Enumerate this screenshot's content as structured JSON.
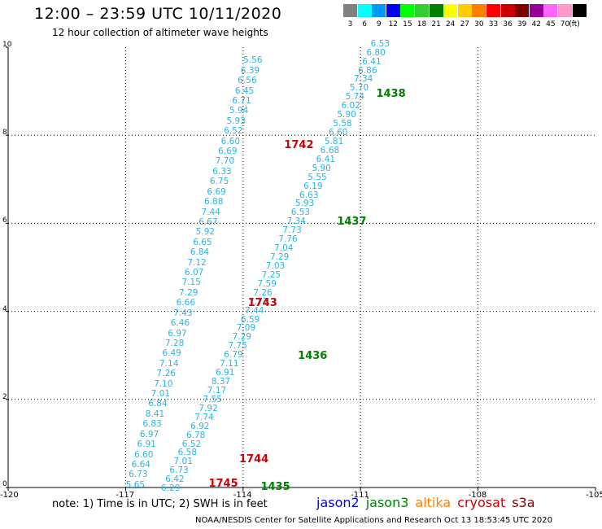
{
  "header": {
    "title": "12:00 – 23:59 UTC 10/11/2020",
    "subtitle": "12 hour collection of altimeter wave heights"
  },
  "colorbar": {
    "unit": "(ft)",
    "cells": [
      {
        "label": "3",
        "color": "#808080"
      },
      {
        "label": "6",
        "color": "#00ffff"
      },
      {
        "label": "9",
        "color": "#0099ff"
      },
      {
        "label": "12",
        "color": "#0000ff"
      },
      {
        "label": "15",
        "color": "#00ff00"
      },
      {
        "label": "18",
        "color": "#33cc33"
      },
      {
        "label": "21",
        "color": "#008000"
      },
      {
        "label": "24",
        "color": "#ffff00"
      },
      {
        "label": "27",
        "color": "#ffcc00"
      },
      {
        "label": "30",
        "color": "#ff8000"
      },
      {
        "label": "33",
        "color": "#ff0000"
      },
      {
        "label": "36",
        "color": "#cc0000"
      },
      {
        "label": "39",
        "color": "#800000"
      },
      {
        "label": "42",
        "color": "#990099"
      },
      {
        "label": "45",
        "color": "#ff66ff"
      },
      {
        "label": "70",
        "color": "#ff99cc"
      },
      {
        "label": "",
        "color": "#000000"
      }
    ]
  },
  "axes": {
    "x_ticks": [
      "-120",
      "-117",
      "-114",
      "-111",
      "-108",
      "-105"
    ],
    "y_ticks": [
      "0",
      "2",
      "4",
      "6",
      "8",
      "10"
    ],
    "x_range": [
      -120,
      -105
    ],
    "y_range": [
      0,
      10
    ]
  },
  "tracks": [
    {
      "name": "track-1",
      "x_range": [
        -116.75,
        -113.75
      ],
      "y_range": [
        0.04,
        9.68
      ],
      "values": [
        "5.65",
        "6.73",
        "6.64",
        "6.60",
        "6.91",
        "6.97",
        "6.83",
        "8.41",
        "6.84",
        "7.01",
        "7.10",
        "7.26",
        "7.14",
        "6.49",
        "7.28",
        "6.97",
        "6.46",
        "7.43",
        "6.66",
        "7.29",
        "7.15",
        "6.07",
        "7.12",
        "6.84",
        "6.65",
        "5.92",
        "6.67",
        "7.44",
        "6.88",
        "6.69",
        "6.75",
        "6.33",
        "7.70",
        "6.69",
        "6.60",
        "6.52",
        "5.93",
        "5.94",
        "6.71",
        "6.45",
        "6.56",
        "6.39",
        "5.56"
      ]
    },
    {
      "name": "track-2",
      "x_range": [
        -115.85,
        -110.5
      ],
      "y_range": [
        -0.04,
        10.06
      ],
      "values": [
        "6.29",
        "6.42",
        "6.73",
        "7.01",
        "6.58",
        "6.52",
        "6.78",
        "6.92",
        "7.74",
        "7.92",
        "7.55",
        "7.17",
        "8.37",
        "6.91",
        "7.11",
        "6.79",
        "7.75",
        "7.29",
        "7.09",
        "6.59",
        "7.44",
        "7.77",
        "7.26",
        "7.59",
        "7.25",
        "7.03",
        "7.29",
        "7.04",
        "7.76",
        "7.73",
        "7.34",
        "6.53",
        "5.93",
        "6.63",
        "6.19",
        "5.55",
        "5.90",
        "6.41",
        "6.68",
        "5.81",
        "6.60",
        "5.58",
        "5.90",
        "6.02",
        "5.74",
        "5.70",
        "7.34",
        "6.86",
        "6.41",
        "6.80",
        "6.53"
      ]
    }
  ],
  "time_labels": [
    {
      "text": "1745",
      "sat": "cryosat",
      "lon": -114.88,
      "lat": 0.07
    },
    {
      "text": "1435",
      "sat": "jason3",
      "lon": -113.55,
      "lat": 0.0
    },
    {
      "text": "1744",
      "sat": "cryosat",
      "lon": -114.1,
      "lat": 0.63
    },
    {
      "text": "1436",
      "sat": "jason3",
      "lon": -112.6,
      "lat": 2.97
    },
    {
      "text": "1743",
      "sat": "cryosat",
      "lon": -113.88,
      "lat": 4.18
    },
    {
      "text": "1437",
      "sat": "jason3",
      "lon": -111.6,
      "lat": 6.02
    },
    {
      "text": "1742",
      "sat": "cryosat",
      "lon": -112.95,
      "lat": 7.77
    },
    {
      "text": "1438",
      "sat": "jason3",
      "lon": -110.6,
      "lat": 8.92
    }
  ],
  "note": "note: 1) Time is in UTC; 2) SWH is in feet",
  "satellites": [
    {
      "name": "jason2",
      "color": "#0000ff"
    },
    {
      "name": "jason3",
      "color": "#008000"
    },
    {
      "name": "altika",
      "color": "#ff8000"
    },
    {
      "name": "cryosat",
      "color": "#cc0000"
    },
    {
      "name": "s3a",
      "color": "#800000"
    }
  ],
  "footer": "NOAA/NESDIS Center for Satellite Applications and Research    Oct 13 18:53:45 UTC 2020"
}
